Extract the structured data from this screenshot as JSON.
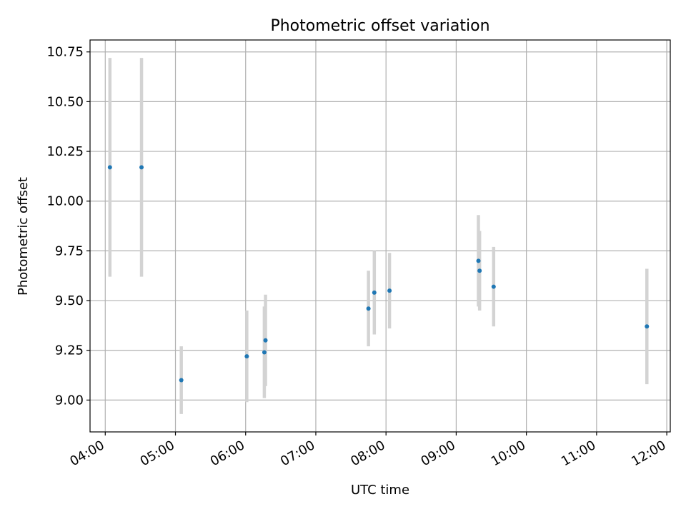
{
  "chart_data": {
    "type": "scatter",
    "title": "Photometric offset variation",
    "xlabel": "UTC time",
    "ylabel": "Photometric offset",
    "x_ticks": [
      "04:00",
      "05:00",
      "06:00",
      "07:00",
      "08:00",
      "09:00",
      "10:00",
      "11:00",
      "12:00"
    ],
    "y_ticks": [
      "9.00",
      "9.25",
      "9.50",
      "9.75",
      "10.00",
      "10.25",
      "10.50",
      "10.75"
    ],
    "xlim": [
      "03:47",
      "12:03"
    ],
    "ylim": [
      8.84,
      10.81
    ],
    "grid": true,
    "colors": {
      "points": "#1f77b4",
      "errorbars": "#d3d3d3",
      "grid": "#b0b0b0"
    },
    "points": [
      {
        "x": "04:04",
        "y": 10.17,
        "yerr": 0.55
      },
      {
        "x": "04:31",
        "y": 10.17,
        "yerr": 0.55
      },
      {
        "x": "05:05",
        "y": 9.1,
        "yerr": 0.17
      },
      {
        "x": "06:01",
        "y": 9.22,
        "yerr": 0.23
      },
      {
        "x": "06:16",
        "y": 9.24,
        "yerr": 0.23
      },
      {
        "x": "06:17",
        "y": 9.3,
        "yerr": 0.23
      },
      {
        "x": "07:45",
        "y": 9.46,
        "yerr": 0.19
      },
      {
        "x": "07:50",
        "y": 9.54,
        "yerr": 0.21
      },
      {
        "x": "08:03",
        "y": 9.55,
        "yerr": 0.19
      },
      {
        "x": "09:19",
        "y": 9.7,
        "yerr": 0.23
      },
      {
        "x": "09:20",
        "y": 9.65,
        "yerr": 0.2
      },
      {
        "x": "09:32",
        "y": 9.57,
        "yerr": 0.2
      },
      {
        "x": "11:43",
        "y": 9.37,
        "yerr": 0.29
      }
    ]
  }
}
